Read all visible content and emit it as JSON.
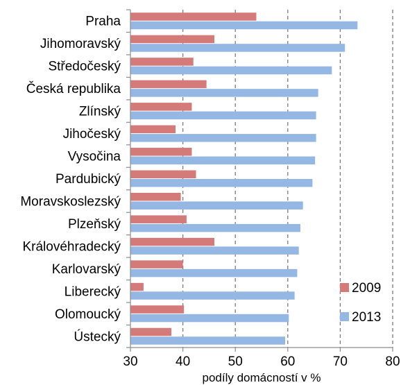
{
  "chart_data": {
    "type": "bar",
    "orientation": "horizontal",
    "categories": [
      "Praha",
      "Jihomoravský",
      "Středočeský",
      "Česká republika",
      "Zlínský",
      "Jihočeský",
      "Vysočina",
      "Pardubický",
      "Moravskoslezský",
      "Plzeňský",
      "Královéhradecký",
      "Karlovarský",
      "Liberecký",
      "Olomoucký",
      "Ústecký"
    ],
    "series": [
      {
        "name": "2009",
        "color": "#d47a78",
        "values": [
          54.0,
          46.0,
          42.0,
          44.5,
          41.7,
          38.6,
          41.7,
          42.5,
          39.6,
          40.7,
          46.0,
          40.0,
          32.5,
          40.2,
          37.8
        ]
      },
      {
        "name": "2013",
        "color": "#95b7e4",
        "values": [
          73.3,
          70.9,
          68.4,
          65.8,
          65.4,
          65.4,
          65.2,
          64.7,
          62.9,
          62.4,
          62.1,
          61.8,
          61.3,
          60.2,
          59.5
        ]
      }
    ],
    "xlabel": "podíly domácností v %",
    "ylabel": "",
    "title": "",
    "xlim": [
      30,
      80
    ],
    "xticks": [
      30,
      40,
      50,
      60,
      70,
      80
    ],
    "grid": "vertical-dashed",
    "legend_position": "bottom-right"
  }
}
